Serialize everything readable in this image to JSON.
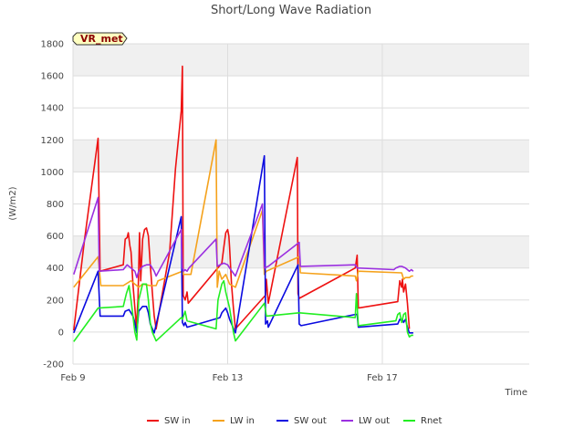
{
  "chart_data": {
    "type": "line",
    "title": "Short/Long Wave Radiation",
    "badge": "VR_met",
    "xlabel": "Time",
    "ylabel": "(W/m2)",
    "ylim": [
      -200,
      1800
    ],
    "xlim": [
      0,
      11.8
    ],
    "yticks": [
      -200,
      0,
      200,
      400,
      600,
      800,
      1000,
      1200,
      1400,
      1600,
      1800
    ],
    "xticks": [
      {
        "value": 0,
        "label": "Feb 9"
      },
      {
        "value": 4,
        "label": "Feb 13"
      },
      {
        "value": 8,
        "label": "Feb 17"
      }
    ],
    "shaded_bands": [
      [
        400,
        600
      ],
      [
        1000,
        1200
      ],
      [
        1600,
        1800
      ]
    ],
    "legend_position": "bottom",
    "series": [
      {
        "name": "SW in",
        "color": "#ee1111",
        "points": [
          [
            0.02,
            10
          ],
          [
            0.3,
            580
          ],
          [
            0.65,
            1210
          ],
          [
            0.7,
            380
          ],
          [
            1.3,
            420
          ],
          [
            1.35,
            580
          ],
          [
            1.4,
            590
          ],
          [
            1.43,
            620
          ],
          [
            1.47,
            540
          ],
          [
            1.5,
            500
          ],
          [
            1.55,
            300
          ],
          [
            1.6,
            150
          ],
          [
            1.64,
            30
          ],
          [
            1.68,
            200
          ],
          [
            1.72,
            620
          ],
          [
            1.75,
            320
          ],
          [
            1.8,
            580
          ],
          [
            1.85,
            640
          ],
          [
            1.9,
            650
          ],
          [
            1.95,
            600
          ],
          [
            2.0,
            420
          ],
          [
            2.05,
            250
          ],
          [
            2.1,
            100
          ],
          [
            2.15,
            20
          ],
          [
            2.5,
            500
          ],
          [
            2.65,
            1020
          ],
          [
            2.8,
            1380
          ],
          [
            2.83,
            1660
          ],
          [
            2.85,
            230
          ],
          [
            2.9,
            200
          ],
          [
            2.95,
            250
          ],
          [
            2.98,
            180
          ],
          [
            3.85,
            430
          ],
          [
            3.9,
            530
          ],
          [
            3.95,
            620
          ],
          [
            4.0,
            640
          ],
          [
            4.03,
            600
          ],
          [
            4.05,
            530
          ],
          [
            4.1,
            300
          ],
          [
            4.15,
            150
          ],
          [
            4.2,
            20
          ],
          [
            4.98,
            230
          ],
          [
            5.0,
            330
          ],
          [
            5.05,
            180
          ],
          [
            5.8,
            1090
          ],
          [
            5.82,
            240
          ],
          [
            5.85,
            210
          ],
          [
            7.3,
            400
          ],
          [
            7.35,
            480
          ],
          [
            7.38,
            150
          ],
          [
            8.4,
            190
          ],
          [
            8.45,
            320
          ],
          [
            8.5,
            280
          ],
          [
            8.52,
            330
          ],
          [
            8.55,
            250
          ],
          [
            8.6,
            300
          ],
          [
            8.65,
            180
          ],
          [
            8.7,
            20
          ]
        ]
      },
      {
        "name": "LW in",
        "color": "#f5a21c",
        "points": [
          [
            0.02,
            280
          ],
          [
            0.65,
            470
          ],
          [
            0.72,
            290
          ],
          [
            1.3,
            290
          ],
          [
            1.5,
            320
          ],
          [
            1.6,
            300
          ],
          [
            1.7,
            280
          ],
          [
            1.8,
            300
          ],
          [
            2.0,
            290
          ],
          [
            2.15,
            290
          ],
          [
            2.2,
            320
          ],
          [
            2.83,
            380
          ],
          [
            2.85,
            360
          ],
          [
            3.05,
            360
          ],
          [
            3.7,
            1200
          ],
          [
            3.73,
            280
          ],
          [
            3.78,
            380
          ],
          [
            3.85,
            330
          ],
          [
            3.95,
            360
          ],
          [
            4.05,
            300
          ],
          [
            4.2,
            280
          ],
          [
            4.9,
            760
          ],
          [
            4.95,
            360
          ],
          [
            5.0,
            380
          ],
          [
            5.85,
            470
          ],
          [
            5.88,
            370
          ],
          [
            7.3,
            350
          ],
          [
            7.33,
            320
          ],
          [
            7.38,
            380
          ],
          [
            8.5,
            370
          ],
          [
            8.55,
            330
          ],
          [
            8.6,
            340
          ],
          [
            8.7,
            340
          ],
          [
            8.75,
            350
          ],
          [
            8.8,
            350
          ]
        ]
      },
      {
        "name": "SW out",
        "color": "#0a0ae0",
        "points": [
          [
            0.02,
            -5
          ],
          [
            0.65,
            380
          ],
          [
            0.7,
            100
          ],
          [
            1.3,
            100
          ],
          [
            1.35,
            130
          ],
          [
            1.45,
            140
          ],
          [
            1.55,
            100
          ],
          [
            1.6,
            60
          ],
          [
            1.65,
            -5
          ],
          [
            1.7,
            130
          ],
          [
            1.8,
            160
          ],
          [
            1.9,
            160
          ],
          [
            1.95,
            120
          ],
          [
            2.0,
            50
          ],
          [
            2.1,
            -5
          ],
          [
            2.8,
            720
          ],
          [
            2.83,
            60
          ],
          [
            2.87,
            40
          ],
          [
            2.9,
            60
          ],
          [
            2.95,
            30
          ],
          [
            3.8,
            90
          ],
          [
            3.85,
            120
          ],
          [
            3.95,
            150
          ],
          [
            4.0,
            120
          ],
          [
            4.05,
            80
          ],
          [
            4.2,
            -5
          ],
          [
            4.95,
            1100
          ],
          [
            4.98,
            50
          ],
          [
            5.03,
            70
          ],
          [
            5.05,
            30
          ],
          [
            5.82,
            420
          ],
          [
            5.85,
            50
          ],
          [
            5.9,
            40
          ],
          [
            7.3,
            110
          ],
          [
            7.35,
            110
          ],
          [
            7.38,
            30
          ],
          [
            8.4,
            50
          ],
          [
            8.45,
            80
          ],
          [
            8.5,
            70
          ],
          [
            8.52,
            80
          ],
          [
            8.55,
            60
          ],
          [
            8.6,
            80
          ],
          [
            8.65,
            30
          ],
          [
            8.7,
            -5
          ],
          [
            8.8,
            -5
          ]
        ]
      },
      {
        "name": "LW out",
        "color": "#9b30e0",
        "points": [
          [
            0.02,
            360
          ],
          [
            0.65,
            840
          ],
          [
            0.68,
            380
          ],
          [
            1.3,
            390
          ],
          [
            1.4,
            420
          ],
          [
            1.5,
            400
          ],
          [
            1.6,
            380
          ],
          [
            1.65,
            340
          ],
          [
            1.7,
            380
          ],
          [
            1.8,
            410
          ],
          [
            1.9,
            420
          ],
          [
            2.0,
            420
          ],
          [
            2.1,
            380
          ],
          [
            2.15,
            350
          ],
          [
            2.8,
            640
          ],
          [
            2.83,
            400
          ],
          [
            2.86,
            380
          ],
          [
            2.9,
            390
          ],
          [
            2.95,
            380
          ],
          [
            3.0,
            400
          ],
          [
            3.7,
            580
          ],
          [
            3.73,
            410
          ],
          [
            3.8,
            420
          ],
          [
            3.9,
            430
          ],
          [
            4.0,
            420
          ],
          [
            4.05,
            400
          ],
          [
            4.2,
            350
          ],
          [
            4.9,
            800
          ],
          [
            4.95,
            400
          ],
          [
            5.05,
            410
          ],
          [
            5.85,
            560
          ],
          [
            5.88,
            410
          ],
          [
            7.3,
            420
          ],
          [
            7.35,
            400
          ],
          [
            8.3,
            390
          ],
          [
            8.35,
            400
          ],
          [
            8.45,
            410
          ],
          [
            8.5,
            410
          ],
          [
            8.6,
            400
          ],
          [
            8.7,
            380
          ],
          [
            8.75,
            390
          ],
          [
            8.8,
            380
          ]
        ]
      },
      {
        "name": "Rnet",
        "color": "#22ee22",
        "points": [
          [
            0.02,
            -60
          ],
          [
            0.65,
            150
          ],
          [
            1.3,
            160
          ],
          [
            1.38,
            240
          ],
          [
            1.45,
            290
          ],
          [
            1.5,
            200
          ],
          [
            1.55,
            100
          ],
          [
            1.6,
            0
          ],
          [
            1.65,
            -50
          ],
          [
            1.7,
            200
          ],
          [
            1.8,
            300
          ],
          [
            1.9,
            300
          ],
          [
            1.95,
            200
          ],
          [
            2.0,
            60
          ],
          [
            2.05,
            0
          ],
          [
            2.15,
            -55
          ],
          [
            2.8,
            90
          ],
          [
            2.83,
            80
          ],
          [
            2.9,
            130
          ],
          [
            2.95,
            70
          ],
          [
            3.7,
            20
          ],
          [
            3.75,
            200
          ],
          [
            3.85,
            300
          ],
          [
            3.9,
            320
          ],
          [
            3.95,
            250
          ],
          [
            4.05,
            150
          ],
          [
            4.15,
            0
          ],
          [
            4.2,
            -55
          ],
          [
            4.95,
            180
          ],
          [
            5.0,
            100
          ],
          [
            5.85,
            120
          ],
          [
            7.3,
            90
          ],
          [
            7.33,
            240
          ],
          [
            7.38,
            40
          ],
          [
            8.35,
            70
          ],
          [
            8.4,
            110
          ],
          [
            8.45,
            120
          ],
          [
            8.5,
            60
          ],
          [
            8.55,
            110
          ],
          [
            8.6,
            120
          ],
          [
            8.65,
            0
          ],
          [
            8.7,
            -30
          ],
          [
            8.75,
            -20
          ],
          [
            8.8,
            -20
          ]
        ]
      }
    ]
  }
}
